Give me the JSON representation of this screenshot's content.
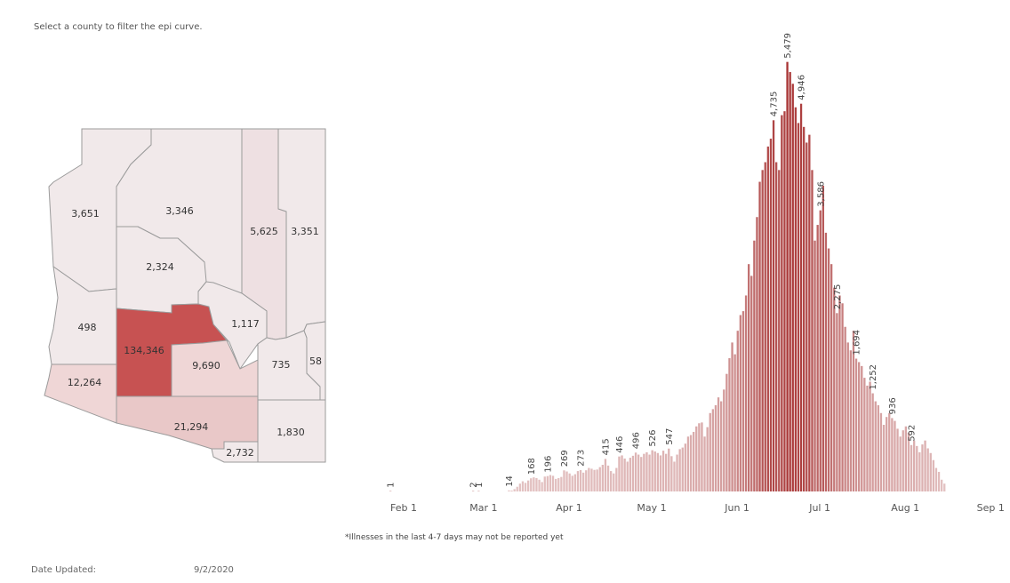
{
  "hint_text": "Select a county to filter the epi curve.",
  "footnote": "*Illnesses in the last 4-7 days may not be reported yet",
  "date_updated_label": "Date Updated:",
  "date_updated_value": "9/2/2020",
  "colors": {
    "map_light": "#f1e9ea",
    "map_pink": "#efd6d6",
    "map_mid": "#e9c8c8",
    "map_dark": "#c75252",
    "bar_light": "#e5c7c7",
    "bar_dark": "#a83434"
  },
  "map": {
    "counties": [
      {
        "id": "mohave",
        "value": "3,651"
      },
      {
        "id": "coconino",
        "value": "3,346"
      },
      {
        "id": "navajo",
        "value": "5,625"
      },
      {
        "id": "apache",
        "value": "3,351"
      },
      {
        "id": "yavapai",
        "value": "2,324"
      },
      {
        "id": "la-paz",
        "value": "498"
      },
      {
        "id": "maricopa",
        "value": "134,346"
      },
      {
        "id": "gila",
        "value": "1,117"
      },
      {
        "id": "yuma",
        "value": "12,264"
      },
      {
        "id": "pinal",
        "value": "9,690"
      },
      {
        "id": "graham",
        "value": "735"
      },
      {
        "id": "greenlee",
        "value": "58"
      },
      {
        "id": "pima",
        "value": "21,294"
      },
      {
        "id": "santa-cruz",
        "value": "2,732"
      },
      {
        "id": "cochise",
        "value": "1,830"
      }
    ]
  },
  "chart_data": {
    "type": "bar",
    "x_tick_labels": [
      "Feb 1",
      "Mar 1",
      "Apr 1",
      "May 1",
      "Jun 1",
      "Jul 1",
      "Aug 1",
      "Sep 1"
    ],
    "ylim": [
      0,
      5600
    ],
    "grid": false,
    "values": [
      1,
      0,
      0,
      0,
      0,
      0,
      0,
      0,
      0,
      0,
      0,
      0,
      0,
      0,
      0,
      0,
      0,
      0,
      0,
      0,
      0,
      0,
      0,
      0,
      0,
      0,
      0,
      0,
      0,
      0,
      2,
      0,
      1,
      0,
      0,
      0,
      0,
      0,
      0,
      0,
      0,
      0,
      0,
      14,
      12,
      30,
      60,
      100,
      130,
      110,
      140,
      168,
      180,
      170,
      150,
      120,
      190,
      196,
      210,
      200,
      160,
      170,
      185,
      269,
      255,
      230,
      200,
      220,
      260,
      273,
      240,
      270,
      300,
      290,
      275,
      280,
      310,
      340,
      415,
      330,
      260,
      230,
      300,
      446,
      460,
      420,
      380,
      430,
      455,
      496,
      470,
      440,
      480,
      500,
      470,
      526,
      510,
      490,
      460,
      520,
      480,
      547,
      450,
      380,
      470,
      540,
      560,
      610,
      700,
      720,
      760,
      830,
      870,
      880,
      700,
      820,
      1000,
      1050,
      1100,
      1200,
      1150,
      1300,
      1500,
      1700,
      1900,
      1750,
      2050,
      2250,
      2300,
      2500,
      2900,
      2750,
      3200,
      3500,
      3950,
      4100,
      4200,
      4400,
      4500,
      4735,
      4200,
      4100,
      4800,
      4850,
      5479,
      5350,
      5200,
      4900,
      4700,
      4946,
      4650,
      4450,
      4550,
      4100,
      3200,
      3400,
      3586,
      3900,
      3300,
      3100,
      2900,
      2600,
      2275,
      2500,
      2400,
      2100,
      1900,
      1800,
      2050,
      1694,
      1650,
      1600,
      1450,
      1350,
      1400,
      1252,
      1150,
      1100,
      1000,
      850,
      950,
      1000,
      936,
      900,
      800,
      700,
      780,
      830,
      750,
      592,
      650,
      580,
      500,
      600,
      650,
      550,
      490,
      400,
      300,
      250,
      150,
      100
    ],
    "data_labels": [
      {
        "index": 0,
        "text": "1"
      },
      {
        "index": 30,
        "text": "2"
      },
      {
        "index": 32,
        "text": "1"
      },
      {
        "index": 43,
        "text": "14"
      },
      {
        "index": 51,
        "text": "168"
      },
      {
        "index": 57,
        "text": "196"
      },
      {
        "index": 63,
        "text": "269"
      },
      {
        "index": 69,
        "text": "273"
      },
      {
        "index": 78,
        "text": "415"
      },
      {
        "index": 83,
        "text": "446"
      },
      {
        "index": 89,
        "text": "496"
      },
      {
        "index": 95,
        "text": "526"
      },
      {
        "index": 101,
        "text": "547"
      },
      {
        "index": 139,
        "text": "4,735"
      },
      {
        "index": 144,
        "text": "5,479"
      },
      {
        "index": 149,
        "text": "4,946"
      },
      {
        "index": 156,
        "text": "3,586"
      },
      {
        "index": 162,
        "text": "2,275"
      },
      {
        "index": 169,
        "text": "1,694"
      },
      {
        "index": 175,
        "text": "1,252"
      },
      {
        "index": 182,
        "text": "936"
      },
      {
        "index": 189,
        "text": "592"
      }
    ]
  }
}
